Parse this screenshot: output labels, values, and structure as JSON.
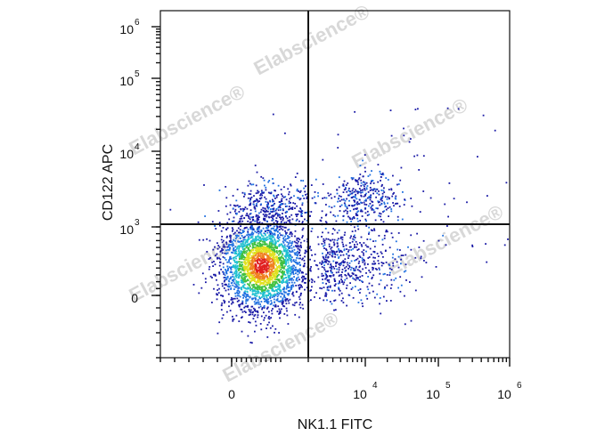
{
  "chart_data": {
    "type": "scatter",
    "title": "",
    "xlabel": "NK1.1 FITC",
    "ylabel": "CD122 APC",
    "x_scale": "biexponential",
    "y_scale": "biexponential",
    "xlim": [
      -500,
      1000000
    ],
    "ylim": [
      -500,
      1000000
    ],
    "x_tick_labels": [
      {
        "base": "0",
        "exp": "",
        "value": 0
      },
      {
        "base": "10",
        "exp": "4",
        "value": 10000
      },
      {
        "base": "10",
        "exp": "5",
        "value": 100000
      },
      {
        "base": "10",
        "exp": "6",
        "value": 1000000
      }
    ],
    "y_tick_labels": [
      {
        "base": "0",
        "exp": "",
        "value": 0
      },
      {
        "base": "10",
        "exp": "3",
        "value": 1000
      },
      {
        "base": "10",
        "exp": "4",
        "value": 10000
      },
      {
        "base": "10",
        "exp": "5",
        "value": 100000
      },
      {
        "base": "10",
        "exp": "6",
        "value": 1000000
      }
    ],
    "gates": {
      "x_threshold": 2000,
      "y_threshold": 1000
    },
    "density_colormap": [
      "#1a1aa6",
      "#1f6fe0",
      "#20c0d0",
      "#40c040",
      "#e0e020",
      "#f08020",
      "#e02020"
    ],
    "populations": [
      {
        "description": "main NK1.1- CD122- cluster",
        "x_center": 200,
        "y_center": 250,
        "density": "high"
      },
      {
        "description": "CD122+ NK1.1- scatter",
        "x_center": 300,
        "y_center": 1500,
        "density": "low"
      },
      {
        "description": "NK1.1+ CD122+ cluster",
        "x_center": 8000,
        "y_center": 2000,
        "density": "low"
      },
      {
        "description": "NK1.1+ CD122- scatter",
        "x_center": 5000,
        "y_center": 300,
        "density": "low"
      }
    ],
    "grid": false,
    "legend": "none"
  },
  "watermark": {
    "text": "Elabscience",
    "mark": "®"
  }
}
